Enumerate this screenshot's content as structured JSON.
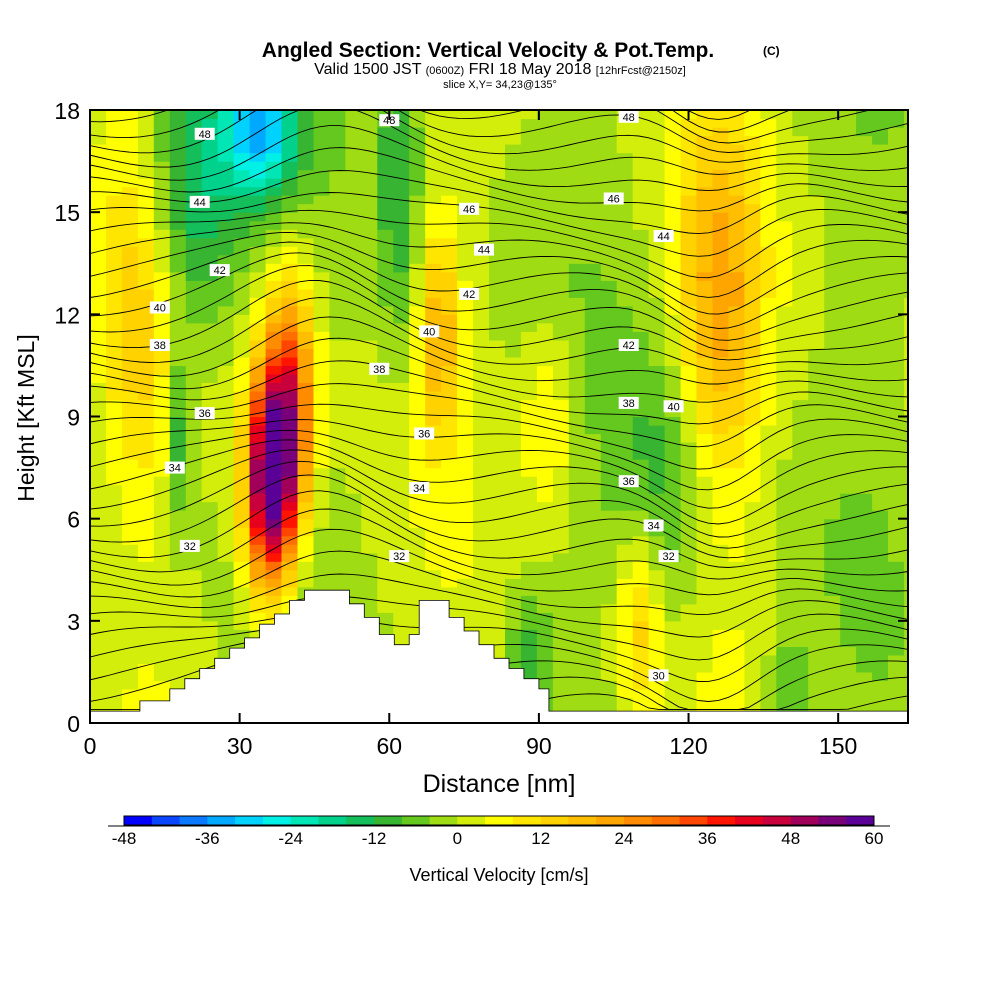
{
  "title": "Angled Section: Vertical Velocity & Pot.Temp.",
  "title_mark": "(C)",
  "subtitle_main_a": "Valid 1500 JST",
  "subtitle_small_a": "(0600Z)",
  "subtitle_main_b": "FRI 18 May 2018",
  "subtitle_small_b": "[12hrFcst@2150z]",
  "slice_line": "slice X,Y= 34,23@135°",
  "chart_data": {
    "type": "heatmap",
    "xlabel": "Distance [nm]",
    "ylabel": "Height [Kft MSL]",
    "xlim": [
      0,
      164
    ],
    "ylim": [
      0,
      18
    ],
    "x_ticks": [
      0,
      30,
      60,
      90,
      120,
      150
    ],
    "y_ticks": [
      0,
      3,
      6,
      9,
      12,
      15,
      18
    ],
    "colorbar": {
      "label": "Vertical Velocity [cm/s]",
      "range": [
        -48,
        60
      ],
      "step": 4,
      "tick_values": [
        -48,
        -36,
        -24,
        -12,
        0,
        12,
        24,
        36,
        48,
        60
      ],
      "colors": [
        "#0000ff",
        "#0a46ff",
        "#0a78ff",
        "#00a8ff",
        "#00d2ff",
        "#00f0e6",
        "#00e6b4",
        "#00d28c",
        "#14be5a",
        "#37b432",
        "#64c81e",
        "#a0dc14",
        "#d2ee0a",
        "#ffff00",
        "#ffe600",
        "#ffd200",
        "#ffbe00",
        "#ffa500",
        "#ff8c00",
        "#ff6e00",
        "#ff4600",
        "#ff1400",
        "#e6001e",
        "#c8003c",
        "#a0005a",
        "#780078",
        "#5a0096"
      ]
    },
    "terrain_top_kft": [
      [
        0,
        0.35
      ],
      [
        10,
        0.35
      ],
      [
        10,
        0.65
      ],
      [
        16,
        0.65
      ],
      [
        16,
        1
      ],
      [
        19,
        1
      ],
      [
        19,
        1.3
      ],
      [
        22,
        1.3
      ],
      [
        22,
        1.6
      ],
      [
        25,
        1.6
      ],
      [
        25,
        1.9
      ],
      [
        28,
        1.9
      ],
      [
        28,
        2.2
      ],
      [
        31,
        2.2
      ],
      [
        31,
        2.5
      ],
      [
        34,
        2.5
      ],
      [
        34,
        2.9
      ],
      [
        37,
        2.9
      ],
      [
        37,
        3.2
      ],
      [
        40,
        3.2
      ],
      [
        40,
        3.6
      ],
      [
        43,
        3.6
      ],
      [
        43,
        3.9
      ],
      [
        52,
        3.9
      ],
      [
        52,
        3.5
      ],
      [
        55,
        3.5
      ],
      [
        55,
        3.1
      ],
      [
        58,
        3.1
      ],
      [
        58,
        2.6
      ],
      [
        61,
        2.6
      ],
      [
        61,
        2.3
      ],
      [
        64,
        2.3
      ],
      [
        64,
        2.6
      ],
      [
        66,
        2.6
      ],
      [
        66,
        3.6
      ],
      [
        72,
        3.6
      ],
      [
        72,
        3.1
      ],
      [
        75,
        3.1
      ],
      [
        75,
        2.7
      ],
      [
        78,
        2.7
      ],
      [
        78,
        2.3
      ],
      [
        81,
        2.3
      ],
      [
        81,
        1.9
      ],
      [
        84,
        1.9
      ],
      [
        84,
        1.6
      ],
      [
        87,
        1.6
      ],
      [
        87,
        1.3
      ],
      [
        90,
        1.3
      ],
      [
        90,
        1.0
      ],
      [
        92,
        1.0
      ],
      [
        92,
        0.35
      ],
      [
        164,
        0.35
      ]
    ],
    "velocity_features": [
      {
        "x": 36,
        "y": 7.0,
        "peak": 60,
        "sx": 3.5,
        "sy": 2.2
      },
      {
        "x": 40,
        "y": 9.5,
        "peak": 35,
        "sx": 3.5,
        "sy": 2.5
      },
      {
        "x": 70,
        "y": 11.5,
        "peak": 18,
        "sx": 3,
        "sy": 2.2
      },
      {
        "x": 10,
        "y": 12,
        "peak": 14,
        "sx": 6,
        "sy": 4
      },
      {
        "x": 110,
        "y": 3,
        "peak": 14,
        "sx": 3,
        "sy": 2
      },
      {
        "x": 126,
        "y": 12,
        "peak": 20,
        "sx": 6,
        "sy": 4
      },
      {
        "x": 92,
        "y": 9,
        "peak": 10,
        "sx": 4,
        "sy": 2
      },
      {
        "x": 20,
        "y": 15.5,
        "peak": -20,
        "sx": 7,
        "sy": 3
      },
      {
        "x": 34,
        "y": 17.5,
        "peak": -30,
        "sx": 5,
        "sy": 1.5
      },
      {
        "x": 62,
        "y": 16,
        "peak": -12,
        "sx": 3,
        "sy": 4
      },
      {
        "x": 18,
        "y": 8.5,
        "peak": -14,
        "sx": 2,
        "sy": 2
      },
      {
        "x": 116,
        "y": 7,
        "peak": -10,
        "sx": 7,
        "sy": 3
      },
      {
        "x": 88,
        "y": 2,
        "peak": -10,
        "sx": 3,
        "sy": 1.5
      },
      {
        "x": 140,
        "y": 1,
        "peak": -10,
        "sx": 3,
        "sy": 1
      }
    ],
    "theta_contour_labels": [
      {
        "value": "48",
        "x": 23,
        "y": 17.3
      },
      {
        "value": "48",
        "x": 60,
        "y": 17.7
      },
      {
        "value": "48",
        "x": 108,
        "y": 17.8
      },
      {
        "value": "46",
        "x": 76,
        "y": 15.1
      },
      {
        "value": "46",
        "x": 105,
        "y": 15.4
      },
      {
        "value": "44",
        "x": 22,
        "y": 15.3
      },
      {
        "value": "44",
        "x": 79,
        "y": 13.9
      },
      {
        "value": "44",
        "x": 115,
        "y": 14.3
      },
      {
        "value": "42",
        "x": 26,
        "y": 13.3
      },
      {
        "value": "42",
        "x": 76,
        "y": 12.6
      },
      {
        "value": "42",
        "x": 108,
        "y": 11.1
      },
      {
        "value": "40",
        "x": 14,
        "y": 12.2
      },
      {
        "value": "40",
        "x": 68,
        "y": 11.5
      },
      {
        "value": "40",
        "x": 117,
        "y": 9.3
      },
      {
        "value": "38",
        "x": 14,
        "y": 11.1
      },
      {
        "value": "38",
        "x": 58,
        "y": 10.4
      },
      {
        "value": "38",
        "x": 108,
        "y": 9.4
      },
      {
        "value": "36",
        "x": 23,
        "y": 9.1
      },
      {
        "value": "36",
        "x": 67,
        "y": 8.5
      },
      {
        "value": "36",
        "x": 108,
        "y": 7.1
      },
      {
        "value": "34",
        "x": 17,
        "y": 7.5
      },
      {
        "value": "34",
        "x": 66,
        "y": 6.9
      },
      {
        "value": "34",
        "x": 113,
        "y": 5.8
      },
      {
        "value": "32",
        "x": 20,
        "y": 5.2
      },
      {
        "value": "32",
        "x": 62,
        "y": 4.9
      },
      {
        "value": "32",
        "x": 116,
        "y": 4.9
      },
      {
        "value": "30",
        "x": 114,
        "y": 1.4
      }
    ]
  }
}
